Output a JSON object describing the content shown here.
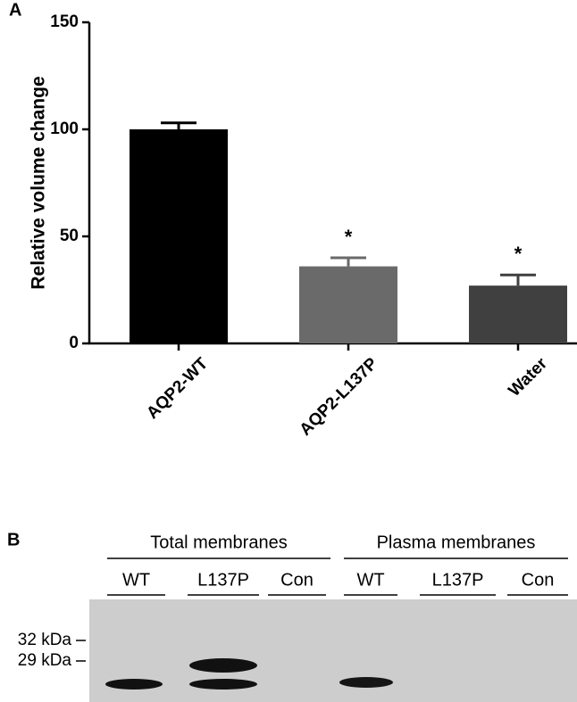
{
  "chart_data": {
    "type": "bar",
    "panel_label": "A",
    "ylabel": "Relative volume change",
    "categories": [
      "AQP2-WT",
      "AQP2-L137P",
      "Water"
    ],
    "values": [
      100,
      36,
      27
    ],
    "errors": [
      3,
      4,
      5
    ],
    "colors": [
      "#000000",
      "#6a6a6a",
      "#404040"
    ],
    "significance": [
      null,
      "*",
      "*"
    ],
    "ylim": [
      0,
      150
    ],
    "yticks": [
      0,
      50,
      100,
      150
    ]
  },
  "blot": {
    "panel_label": "B",
    "groups": [
      {
        "label": "Total membranes",
        "lanes": [
          "WT",
          "L137P",
          "Con"
        ]
      },
      {
        "label": "Plasma membranes",
        "lanes": [
          "WT",
          "L137P",
          "Con"
        ]
      }
    ],
    "markers": [
      "32 kDa",
      "29 kDa"
    ]
  }
}
